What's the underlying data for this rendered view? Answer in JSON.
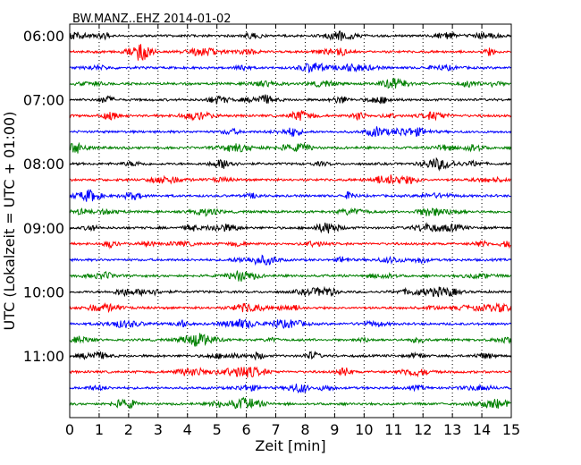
{
  "chart_data": {
    "type": "line",
    "title": "BW.MANZ..EHZ 2014-01-02",
    "xlabel": "Zeit  [min]",
    "ylabel": "UTC (Lokalzeit = UTC + 01:00)",
    "xlim": [
      0,
      15
    ],
    "x_ticks": [
      "0",
      "1",
      "2",
      "3",
      "4",
      "5",
      "6",
      "7",
      "8",
      "9",
      "10",
      "11",
      "12",
      "13",
      "14",
      "15"
    ],
    "y_tick_labels": [
      "06:00",
      "07:00",
      "08:00",
      "09:00",
      "10:00",
      "11:00"
    ],
    "rows_per_hour": 4,
    "row_count": 24,
    "grid": "vertical dotted",
    "trace_colors": [
      "#000000",
      "#ff0000",
      "#0000ff",
      "#008000"
    ],
    "rows": [
      {
        "start": "06:00",
        "color": "#000000"
      },
      {
        "start": "06:15",
        "color": "#ff0000"
      },
      {
        "start": "06:30",
        "color": "#0000ff"
      },
      {
        "start": "06:45",
        "color": "#008000"
      },
      {
        "start": "07:00",
        "color": "#000000"
      },
      {
        "start": "07:15",
        "color": "#ff0000"
      },
      {
        "start": "07:30",
        "color": "#0000ff"
      },
      {
        "start": "07:45",
        "color": "#008000"
      },
      {
        "start": "08:00",
        "color": "#000000"
      },
      {
        "start": "08:15",
        "color": "#ff0000"
      },
      {
        "start": "08:30",
        "color": "#0000ff"
      },
      {
        "start": "08:45",
        "color": "#008000"
      },
      {
        "start": "09:00",
        "color": "#000000"
      },
      {
        "start": "09:15",
        "color": "#ff0000"
      },
      {
        "start": "09:30",
        "color": "#0000ff"
      },
      {
        "start": "09:45",
        "color": "#008000"
      },
      {
        "start": "10:00",
        "color": "#000000"
      },
      {
        "start": "10:15",
        "color": "#ff0000"
      },
      {
        "start": "10:30",
        "color": "#0000ff"
      },
      {
        "start": "10:45",
        "color": "#008000"
      },
      {
        "start": "11:00",
        "color": "#000000"
      },
      {
        "start": "11:15",
        "color": "#ff0000"
      },
      {
        "start": "11:30",
        "color": "#0000ff"
      },
      {
        "start": "11:45",
        "color": "#008000"
      }
    ]
  }
}
